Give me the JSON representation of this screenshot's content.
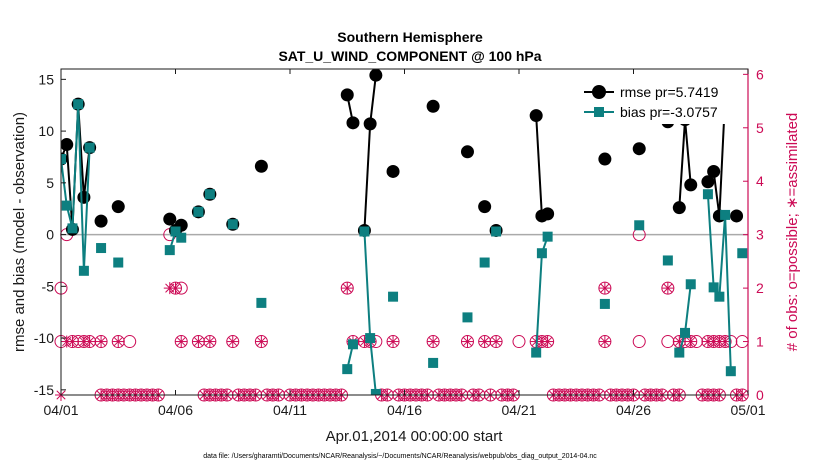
{
  "chart_data": {
    "type": "line",
    "title": "Southern Hemisphere",
    "subtitle": "SAT_U_WIND_COMPONENT @ 100 hPa",
    "xlabel": "Apr.01,2014 00:00:00 start",
    "ylabel": "rmse and bias (model - observation)",
    "y2label": "# of obs: o=possible; ∗=assimilated",
    "footnote": "data file: /Users/gharamti/Documents/NCAR/Reanalysis/~/Documents/NCAR/Reanalysis/webpub/obs_diag_output_2014-04.nc",
    "xlim": [
      0,
      30
    ],
    "ylim": [
      -15.5,
      16
    ],
    "y2lim": [
      0,
      6.1
    ],
    "x_ticks": [
      {
        "value": 0,
        "label": "04/01"
      },
      {
        "value": 5,
        "label": "04/06"
      },
      {
        "value": 10,
        "label": "04/11"
      },
      {
        "value": 15,
        "label": "04/16"
      },
      {
        "value": 20,
        "label": "04/21"
      },
      {
        "value": 25,
        "label": "04/26"
      },
      {
        "value": 30,
        "label": "05/01"
      }
    ],
    "y_ticks": [
      15,
      10,
      5,
      0,
      -5,
      -10,
      -15
    ],
    "y2_ticks": [
      6,
      5,
      4,
      3,
      2,
      1,
      0
    ],
    "zero_line": 0,
    "legend_position": "top-right",
    "colors": {
      "rmse": "#000000",
      "bias": "#0d7f80",
      "obs": "#cc0a55",
      "zero": "#aaaaaa"
    },
    "series": [
      {
        "name": "rmse pr=5.7419",
        "key": "rmse",
        "marker": "circle",
        "segments": [
          [
            [
              0.0,
              7.3
            ],
            [
              0.25,
              8.7
            ],
            [
              0.5,
              0.5
            ],
            [
              0.75,
              12.6
            ],
            [
              1.0,
              3.6
            ],
            [
              1.25,
              8.4
            ]
          ],
          [
            [
              1.75,
              1.3
            ]
          ],
          [
            [
              2.5,
              2.7
            ]
          ],
          [
            [
              4.75,
              1.5
            ],
            [
              5.0,
              0.4
            ],
            [
              5.25,
              0.9
            ]
          ],
          [
            [
              6.0,
              2.2
            ]
          ],
          [
            [
              6.5,
              3.9
            ]
          ],
          [
            [
              7.5,
              1.0
            ]
          ],
          [
            [
              8.75,
              6.6
            ]
          ],
          [
            [
              12.5,
              13.5
            ],
            [
              12.75,
              10.8
            ]
          ],
          [
            [
              13.25,
              0.4
            ],
            [
              13.5,
              10.7
            ],
            [
              13.75,
              15.4
            ]
          ],
          [
            [
              14.5,
              6.1
            ]
          ],
          [
            [
              16.25,
              12.4
            ]
          ],
          [
            [
              17.75,
              8.0
            ]
          ],
          [
            [
              18.5,
              2.7
            ]
          ],
          [
            [
              19.0,
              0.4
            ]
          ],
          [
            [
              20.75,
              11.5
            ],
            [
              21.0,
              1.8
            ],
            [
              21.25,
              2.0
            ]
          ],
          [
            [
              23.75,
              7.3
            ]
          ],
          [
            [
              25.25,
              8.3
            ]
          ],
          [
            [
              26.5,
              10.9
            ]
          ],
          [
            [
              27.0,
              2.6
            ],
            [
              27.25,
              11.1
            ],
            [
              27.5,
              4.8
            ]
          ],
          [
            [
              28.25,
              5.1
            ],
            [
              28.5,
              6.1
            ],
            [
              28.75,
              1.8
            ],
            [
              29.0,
              13.2
            ]
          ],
          [
            [
              29.5,
              1.8
            ]
          ]
        ]
      },
      {
        "name": "bias pr=-3.0757",
        "key": "bias",
        "marker": "square",
        "segments": [
          [
            [
              0.0,
              7.3
            ],
            [
              0.25,
              2.8
            ],
            [
              0.5,
              0.6
            ],
            [
              0.75,
              12.6
            ],
            [
              1.0,
              -3.5
            ],
            [
              1.25,
              8.4
            ]
          ],
          [
            [
              1.75,
              -1.3
            ]
          ],
          [
            [
              2.5,
              -2.7
            ]
          ],
          [
            [
              4.75,
              -1.5
            ],
            [
              5.0,
              0.3
            ],
            [
              5.25,
              -0.3
            ]
          ],
          [
            [
              6.0,
              2.2
            ]
          ],
          [
            [
              6.5,
              3.9
            ]
          ],
          [
            [
              7.5,
              1.0
            ]
          ],
          [
            [
              8.75,
              -6.6
            ]
          ],
          [
            [
              12.5,
              -13.0
            ],
            [
              12.75,
              -10.6
            ]
          ],
          [
            [
              13.25,
              0.3
            ],
            [
              13.5,
              -10.0
            ],
            [
              13.75,
              -15.4
            ]
          ],
          [
            [
              14.5,
              -6.0
            ]
          ],
          [
            [
              16.25,
              -12.4
            ]
          ],
          [
            [
              17.75,
              -8.0
            ]
          ],
          [
            [
              18.5,
              -2.7
            ]
          ],
          [
            [
              19.0,
              0.3
            ]
          ],
          [
            [
              20.75,
              -11.4
            ],
            [
              21.0,
              -1.8
            ],
            [
              21.25,
              -0.2
            ]
          ],
          [
            [
              23.75,
              -6.7
            ]
          ],
          [
            [
              25.25,
              0.9
            ]
          ],
          [
            [
              26.5,
              -2.5
            ]
          ],
          [
            [
              27.0,
              -11.4
            ],
            [
              27.25,
              -9.5
            ],
            [
              27.5,
              -4.8
            ]
          ],
          [
            [
              28.25,
              3.9
            ],
            [
              28.5,
              -5.1
            ],
            [
              28.75,
              -6.0
            ],
            [
              29.0,
              1.9
            ],
            [
              29.25,
              -13.2
            ]
          ],
          [
            [
              29.75,
              -1.8
            ]
          ]
        ]
      }
    ],
    "obs_possible": [
      [
        0,
        1
      ],
      [
        0,
        2
      ],
      [
        0.25,
        3
      ],
      [
        0.5,
        1
      ],
      [
        0.75,
        1
      ],
      [
        1,
        1
      ],
      [
        1.25,
        1
      ],
      [
        1.75,
        1
      ],
      [
        2.5,
        1
      ],
      [
        3,
        1
      ],
      [
        4.75,
        3
      ],
      [
        5,
        2
      ],
      [
        5.25,
        2
      ],
      [
        5.25,
        1
      ],
      [
        6,
        1
      ],
      [
        6.5,
        1
      ],
      [
        7.5,
        1
      ],
      [
        8.75,
        1
      ],
      [
        12.5,
        2
      ],
      [
        12.75,
        1
      ],
      [
        13.25,
        1
      ],
      [
        13.5,
        1
      ],
      [
        13.75,
        1
      ],
      [
        14.5,
        1
      ],
      [
        16.25,
        1
      ],
      [
        17.75,
        1
      ],
      [
        18.5,
        1
      ],
      [
        19,
        1
      ],
      [
        20,
        1
      ],
      [
        20.75,
        1
      ],
      [
        21,
        1
      ],
      [
        21.25,
        1
      ],
      [
        23.75,
        2
      ],
      [
        23.75,
        1
      ],
      [
        25.25,
        3
      ],
      [
        25.25,
        1
      ],
      [
        26.5,
        2
      ],
      [
        26.5,
        1
      ],
      [
        27,
        1
      ],
      [
        27.25,
        1
      ],
      [
        27.5,
        1
      ],
      [
        27.75,
        1
      ],
      [
        28.25,
        1
      ],
      [
        28.5,
        1
      ],
      [
        28.75,
        1
      ],
      [
        29,
        1
      ],
      [
        29.25,
        1
      ],
      [
        29.75,
        1
      ]
    ],
    "obs_assimilated": [
      [
        0,
        0
      ],
      [
        0.25,
        1
      ],
      [
        0.5,
        1
      ],
      [
        1,
        1
      ],
      [
        1.25,
        1
      ],
      [
        1.75,
        1
      ],
      [
        2.5,
        1
      ],
      [
        4.75,
        2
      ],
      [
        5,
        2
      ],
      [
        5.25,
        1
      ],
      [
        6,
        1
      ],
      [
        6.5,
        1
      ],
      [
        7.5,
        1
      ],
      [
        8.75,
        1
      ],
      [
        12.5,
        2
      ],
      [
        12.75,
        1
      ],
      [
        13.25,
        1
      ],
      [
        13.5,
        1
      ],
      [
        14.5,
        1
      ],
      [
        16.25,
        1
      ],
      [
        17.75,
        1
      ],
      [
        18.5,
        1
      ],
      [
        19,
        1
      ],
      [
        20.75,
        1
      ],
      [
        21,
        1
      ],
      [
        21.25,
        1
      ],
      [
        23.75,
        2
      ],
      [
        23.75,
        1
      ],
      [
        26.5,
        2
      ],
      [
        27,
        1
      ],
      [
        27.5,
        1
      ],
      [
        28.25,
        1
      ],
      [
        28.5,
        1
      ],
      [
        28.75,
        1
      ],
      [
        29,
        1
      ]
    ],
    "obs_zero_x": [
      1.75,
      2.0,
      2.25,
      2.5,
      2.75,
      3.0,
      3.25,
      3.5,
      3.75,
      4.0,
      4.25,
      6.25,
      6.5,
      6.75,
      7.0,
      7.25,
      7.75,
      8.0,
      8.25,
      8.5,
      9.0,
      9.25,
      9.5,
      10.0,
      10.25,
      10.5,
      10.75,
      11.0,
      11.25,
      11.5,
      11.75,
      12.0,
      12.25,
      14.0,
      14.25,
      14.75,
      15.0,
      15.25,
      15.5,
      15.75,
      16.0,
      16.5,
      16.75,
      17.0,
      17.25,
      17.5,
      18.0,
      18.25,
      18.75,
      19.25,
      19.5,
      19.75,
      21.5,
      21.75,
      22.0,
      22.25,
      22.5,
      22.75,
      23.0,
      23.25,
      23.5,
      24.0,
      24.25,
      24.5,
      24.75,
      25.0,
      25.5,
      25.75,
      26.0,
      26.25,
      26.75,
      27.0,
      28.0,
      28.25,
      28.5,
      28.75,
      29.5,
      29.75
    ]
  }
}
